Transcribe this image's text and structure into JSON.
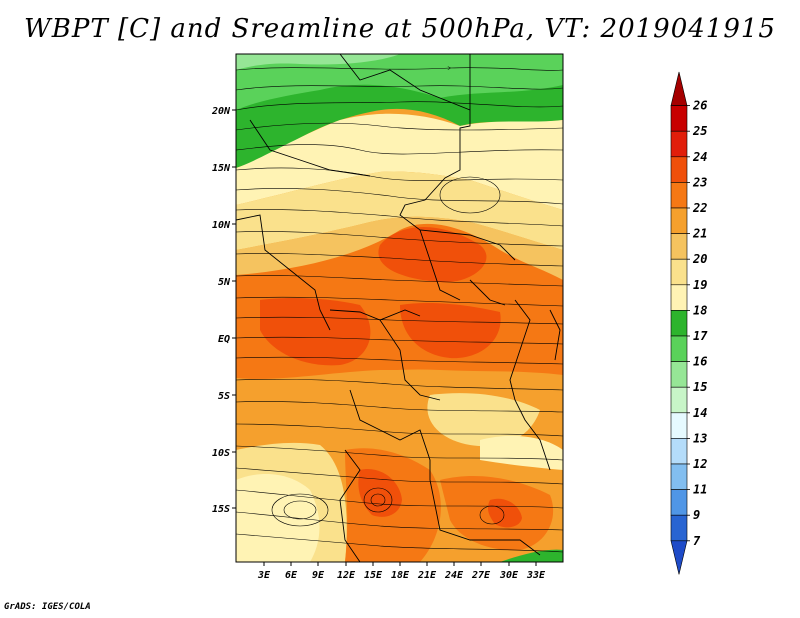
{
  "title": "WBPT [C] and Sreamline at 500hPa, VT: 2019041915",
  "credit": "GrADS: IGES/COLA",
  "map": {
    "lat_labels": [
      "20N",
      "15N",
      "10N",
      "5N",
      "EQ",
      "5S",
      "10S",
      "15S"
    ],
    "lon_labels": [
      "3E",
      "6E",
      "9E",
      "12E",
      "15E",
      "18E",
      "21E",
      "24E",
      "27E",
      "30E",
      "33E"
    ]
  },
  "colorbar": {
    "labels": [
      "26",
      "25",
      "24",
      "23",
      "22",
      "21",
      "20",
      "19",
      "18",
      "17",
      "16",
      "15",
      "14",
      "13",
      "12",
      "11",
      "9",
      "7"
    ],
    "colors": [
      "#a50000",
      "#c80000",
      "#e11e0a",
      "#f0500a",
      "#f57814",
      "#f5a02d",
      "#f5c35f",
      "#fae18c",
      "#fff3b4",
      "#2db42d",
      "#5ad25a",
      "#96e696",
      "#c8f5c8",
      "#e6faff",
      "#b4dcfa",
      "#82bef0",
      "#5096e6",
      "#2864d2",
      "#1e4bc8"
    ]
  }
}
